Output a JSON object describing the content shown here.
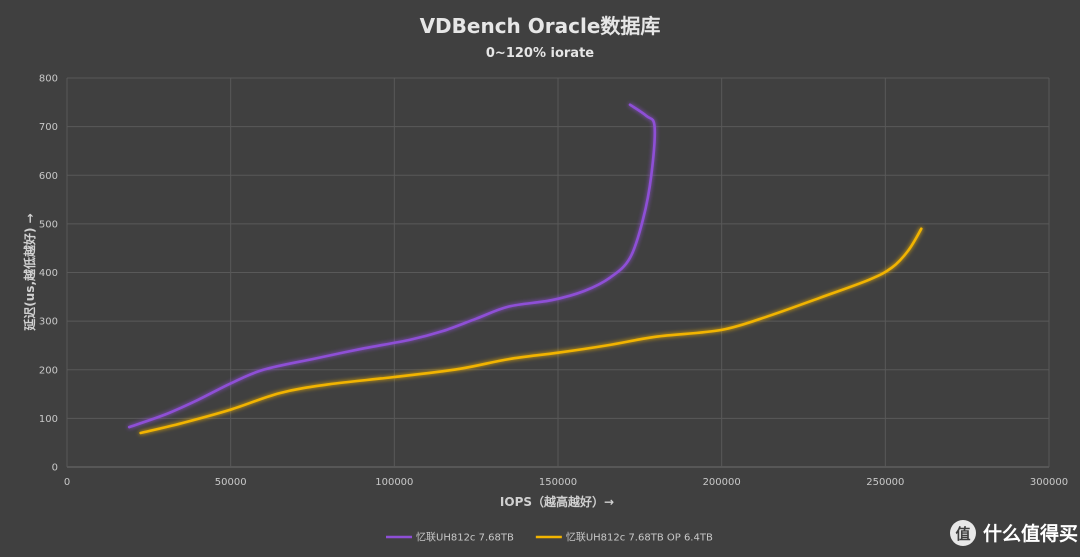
{
  "chart_data": {
    "type": "line",
    "title": "VDBench Oracle数据库",
    "subtitle": "0~120% iorate",
    "xlabel": "IOPS（越高越好）→",
    "ylabel": "延迟(us,越低越好) →",
    "xlim": [
      0,
      300000
    ],
    "ylim": [
      0,
      800
    ],
    "x_ticks": [
      "0",
      "50000",
      "100000",
      "150000",
      "200000",
      "250000",
      "300000"
    ],
    "y_ticks": [
      "0",
      "100",
      "200",
      "300",
      "400",
      "500",
      "600",
      "700",
      "800"
    ],
    "grid": true,
    "legend_position": "bottom",
    "series": [
      {
        "name": "忆联UH812c 7.68TB",
        "color": "#8e4fd6",
        "points": [
          [
            19000,
            82
          ],
          [
            30000,
            108
          ],
          [
            40000,
            138
          ],
          [
            50000,
            172
          ],
          [
            60000,
            200
          ],
          [
            75000,
            222
          ],
          [
            90000,
            243
          ],
          [
            105000,
            262
          ],
          [
            115000,
            280
          ],
          [
            125000,
            305
          ],
          [
            135000,
            330
          ],
          [
            148000,
            343
          ],
          [
            158000,
            362
          ],
          [
            166000,
            390
          ],
          [
            172000,
            430
          ],
          [
            176000,
            510
          ],
          [
            178500,
            600
          ],
          [
            179500,
            700
          ],
          [
            177000,
            722
          ],
          [
            172000,
            745
          ]
        ]
      },
      {
        "name": "忆联UH812c 7.68TB OP 6.4TB",
        "color": "#f2b400",
        "points": [
          [
            22500,
            70
          ],
          [
            35000,
            90
          ],
          [
            50000,
            118
          ],
          [
            65000,
            152
          ],
          [
            80000,
            170
          ],
          [
            100000,
            185
          ],
          [
            120000,
            202
          ],
          [
            135000,
            222
          ],
          [
            150000,
            235
          ],
          [
            165000,
            250
          ],
          [
            180000,
            268
          ],
          [
            200000,
            282
          ],
          [
            215000,
            312
          ],
          [
            230000,
            348
          ],
          [
            245000,
            385
          ],
          [
            252000,
            410
          ],
          [
            257000,
            445
          ],
          [
            261000,
            490
          ]
        ]
      }
    ]
  },
  "watermark": {
    "logo_glyph": "值",
    "text": "什么值得买"
  }
}
